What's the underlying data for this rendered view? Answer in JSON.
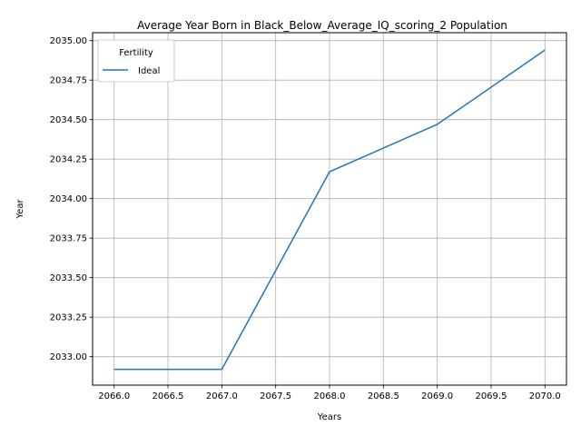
{
  "chart_data": {
    "type": "line",
    "title": "Average Year Born in Black_Below_Average_IQ_scoring_2 Population",
    "xlabel": "Years",
    "ylabel": "Year",
    "x": [
      2066,
      2067,
      2068,
      2069,
      2070
    ],
    "series": [
      {
        "name": "Ideal",
        "color": "#1f77b4",
        "values": [
          2032.92,
          2032.92,
          2034.17,
          2034.47,
          2034.94
        ]
      }
    ],
    "xlim": [
      2065.8,
      2070.2
    ],
    "ylim": [
      2032.82,
      2035.05
    ],
    "xticks": [
      2066.0,
      2066.5,
      2067.0,
      2067.5,
      2068.0,
      2068.5,
      2069.0,
      2069.5,
      2070.0
    ],
    "xtick_labels": [
      "2066.0",
      "2066.5",
      "2067.0",
      "2067.5",
      "2068.0",
      "2068.5",
      "2069.0",
      "2069.5",
      "2070.0"
    ],
    "yticks": [
      2033.0,
      2033.25,
      2033.5,
      2033.75,
      2034.0,
      2034.25,
      2034.5,
      2034.75,
      2035.0
    ],
    "ytick_labels": [
      "2033.00",
      "2033.25",
      "2033.50",
      "2033.75",
      "2034.00",
      "2034.25",
      "2034.50",
      "2034.75",
      "2035.00"
    ],
    "grid": true,
    "legend": {
      "title": "Fertility",
      "position": "top-left"
    }
  }
}
